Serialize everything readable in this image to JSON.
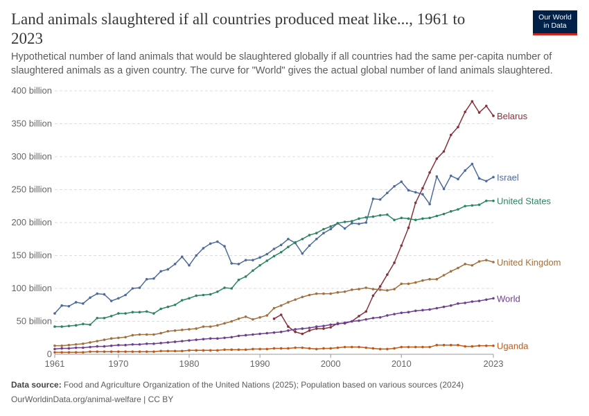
{
  "header": {
    "title": "Land animals slaughtered if all countries produced meat like..., 1961 to 2023",
    "subtitle": "Hypothetical number of land animals that would be slaughtered globally if all countries had the same per-capita number of slaughtered animals as a given country. The curve for \"World\" gives the actual global number of land animals slaughtered.",
    "logo": "Our World in Data"
  },
  "footer": {
    "source_label": "Data source:",
    "source": "Food and Agriculture Organization of the United Nations (2025); Population based on various sources (2024)",
    "url": "OurWorldinData.org/animal-welfare | CC BY"
  },
  "chart_data": {
    "type": "line",
    "xlim": [
      1961,
      2023
    ],
    "ylim": [
      0,
      400
    ],
    "grid": "horizontal dashed",
    "x_ticks": [
      "1961",
      "1970",
      "1980",
      "1990",
      "2000",
      "2010",
      "2023"
    ],
    "y_ticks": [
      "0",
      "50 billion",
      "100 billion",
      "150 billion",
      "200 billion",
      "250 billion",
      "300 billion",
      "350 billion",
      "400 billion"
    ],
    "unit": "billion",
    "start_year": 1961,
    "series": [
      {
        "name": "Belarus",
        "color": "#883039",
        "start": 1992,
        "values": [
          54,
          60,
          42,
          34,
          31,
          36,
          39,
          39,
          41,
          47,
          47,
          50,
          58,
          65,
          89,
          103,
          121,
          139,
          165,
          192,
          230,
          252,
          276,
          297,
          308,
          333,
          345,
          368,
          384,
          367,
          377,
          362
        ]
      },
      {
        "name": "Israel",
        "color": "#4c6a9c",
        "start": 1961,
        "values": [
          62,
          74,
          73,
          79,
          77,
          86,
          92,
          91,
          81,
          85,
          90,
          100,
          101,
          114,
          115,
          126,
          129,
          137,
          148,
          135,
          150,
          161,
          168,
          171,
          164,
          138,
          137,
          143,
          143,
          147,
          152,
          160,
          166,
          175,
          169,
          153,
          165,
          175,
          184,
          190,
          199,
          191,
          199,
          198,
          200,
          236,
          235,
          245,
          255,
          262,
          249,
          246,
          243,
          228,
          270,
          251,
          271,
          266,
          279,
          289,
          267,
          263,
          269
        ]
      },
      {
        "name": "United States",
        "color": "#2c8465",
        "start": 1961,
        "values": [
          42,
          42,
          43,
          44,
          46,
          45,
          55,
          55,
          58,
          62,
          62,
          64,
          64,
          65,
          62,
          69,
          72,
          75,
          82,
          85,
          89,
          90,
          91,
          95,
          101,
          100,
          113,
          118,
          127,
          135,
          142,
          149,
          155,
          163,
          170,
          175,
          181,
          184,
          190,
          194,
          199,
          201,
          202,
          206,
          208,
          209,
          211,
          212,
          204,
          207,
          206,
          204,
          206,
          207,
          210,
          213,
          217,
          220,
          225,
          226,
          227,
          233,
          233
        ]
      },
      {
        "name": "United Kingdom",
        "color": "#a2703c",
        "start": 1961,
        "values": [
          13,
          13,
          14,
          15,
          16,
          18,
          20,
          22,
          24,
          25,
          26,
          29,
          30,
          30,
          30,
          32,
          35,
          36,
          37,
          38,
          39,
          42,
          42,
          44,
          47,
          50,
          54,
          57,
          53,
          56,
          59,
          70,
          74,
          79,
          83,
          87,
          90,
          92,
          92,
          92,
          94,
          95,
          98,
          99,
          101,
          99,
          98,
          97,
          99,
          107,
          107,
          109,
          112,
          114,
          114,
          120,
          126,
          131,
          137,
          135,
          141,
          143,
          140
        ]
      },
      {
        "name": "World",
        "color": "#6d3e91",
        "start": 1961,
        "values": [
          8,
          9,
          9,
          10,
          10,
          11,
          12,
          12,
          13,
          14,
          14,
          15,
          15,
          16,
          16,
          17,
          18,
          19,
          20,
          21,
          22,
          23,
          24,
          24,
          25,
          26,
          28,
          29,
          30,
          31,
          32,
          33,
          34,
          36,
          38,
          39,
          40,
          42,
          43,
          45,
          46,
          48,
          50,
          51,
          53,
          55,
          56,
          59,
          61,
          63,
          64,
          66,
          67,
          68,
          70,
          72,
          74,
          77,
          78,
          80,
          81,
          83,
          85
        ]
      },
      {
        "name": "Uganda",
        "color": "#c05917",
        "start": 1961,
        "values": [
          3,
          3,
          3,
          3,
          3,
          4,
          4,
          4,
          4,
          4,
          4,
          4,
          4,
          4,
          4,
          5,
          5,
          5,
          5,
          6,
          6,
          6,
          6,
          6,
          7,
          7,
          7,
          7,
          8,
          8,
          8,
          9,
          9,
          9,
          10,
          10,
          9,
          8,
          9,
          9,
          10,
          11,
          11,
          11,
          10,
          9,
          8,
          8,
          9,
          11,
          11,
          11,
          11,
          11,
          14,
          14,
          14,
          14,
          12,
          12,
          13,
          13,
          13
        ]
      }
    ]
  }
}
